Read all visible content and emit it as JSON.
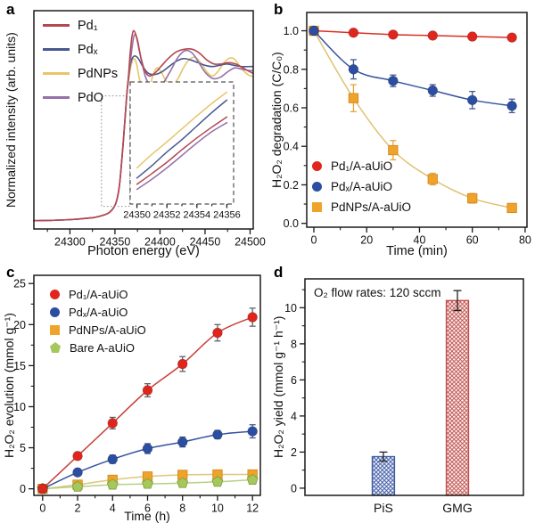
{
  "panels": {
    "a": "a",
    "b": "b",
    "c": "c",
    "d": "d"
  },
  "chart_data": [
    {
      "id": "a",
      "type": "line",
      "xlabel": "Photon energy (eV)",
      "ylabel": "Normalized intensity (arb. units)",
      "xlim": [
        24260,
        24503.5
      ],
      "ylim": [
        -0.03,
        1.61
      ],
      "xticks": [
        24300,
        24350,
        24400,
        24450,
        24500
      ],
      "xtick_labels": [
        "24300",
        "24350",
        "24400",
        "24450",
        "24500"
      ],
      "grid": false,
      "legend_position": "top-left",
      "series": [
        {
          "name": "Pd₁",
          "color": "#b5474f",
          "x": [
            24260,
            24280,
            24300,
            24315,
            24328,
            24338,
            24344,
            24349,
            24352,
            24355,
            24358,
            24361,
            24363,
            24365,
            24367,
            24369,
            24371,
            24374,
            24378,
            24383,
            24388,
            24394,
            24401,
            24409,
            24418,
            24427,
            24436,
            24444,
            24452,
            24460,
            24468,
            24476,
            24484,
            24492,
            24500,
            24503
          ],
          "y": [
            0.032,
            0.035,
            0.04,
            0.048,
            0.058,
            0.075,
            0.095,
            0.135,
            0.185,
            0.3,
            0.52,
            0.78,
            0.97,
            1.12,
            1.3,
            1.42,
            1.46,
            1.41,
            1.28,
            1.16,
            1.12,
            1.14,
            1.19,
            1.25,
            1.3,
            1.32,
            1.32,
            1.29,
            1.24,
            1.21,
            1.21,
            1.22,
            1.21,
            1.18,
            1.15,
            1.14
          ]
        },
        {
          "name": "Pdₓ",
          "color": "#46598f",
          "x": [
            24260,
            24280,
            24300,
            24315,
            24328,
            24338,
            24344,
            24349,
            24352,
            24355,
            24358,
            24361,
            24363,
            24365,
            24367,
            24369,
            24372,
            24376,
            24381,
            24387,
            24394,
            24402,
            24410,
            24418,
            24426,
            24434,
            24442,
            24450,
            24458,
            24466,
            24474,
            24482,
            24490,
            24500,
            24503
          ],
          "y": [
            0.032,
            0.035,
            0.04,
            0.048,
            0.058,
            0.075,
            0.095,
            0.135,
            0.185,
            0.3,
            0.52,
            0.78,
            0.97,
            1.1,
            1.2,
            1.25,
            1.27,
            1.25,
            1.19,
            1.14,
            1.13,
            1.15,
            1.19,
            1.23,
            1.25,
            1.24,
            1.22,
            1.2,
            1.19,
            1.2,
            1.21,
            1.2,
            1.19,
            1.19,
            1.19
          ]
        },
        {
          "name": "PdNPs",
          "color": "#e7c568",
          "x": [
            24260,
            24280,
            24300,
            24315,
            24328,
            24338,
            24344,
            24349,
            24352,
            24355,
            24358,
            24361,
            24363,
            24365,
            24368,
            24371,
            24374,
            24377,
            24381,
            24385,
            24389,
            24393,
            24397,
            24402,
            24408,
            24414,
            24420,
            24426,
            24432,
            24439,
            24446,
            24452,
            24458,
            24464,
            24470,
            24476,
            24482,
            24488,
            24494,
            24500,
            24503
          ],
          "y": [
            0.032,
            0.035,
            0.04,
            0.048,
            0.058,
            0.075,
            0.095,
            0.135,
            0.185,
            0.3,
            0.52,
            0.78,
            0.97,
            1.08,
            1.2,
            1.25,
            1.21,
            1.1,
            1.01,
            0.99,
            1.05,
            1.14,
            1.18,
            1.14,
            1.07,
            1.05,
            1.1,
            1.18,
            1.24,
            1.26,
            1.21,
            1.15,
            1.12,
            1.15,
            1.21,
            1.25,
            1.25,
            1.2,
            1.15,
            1.12,
            1.12
          ]
        },
        {
          "name": "PdO",
          "color": "#9670a8",
          "x": [
            24260,
            24280,
            24300,
            24315,
            24328,
            24338,
            24344,
            24349,
            24352,
            24355,
            24358,
            24361,
            24363,
            24365,
            24368,
            24370,
            24372,
            24375,
            24379,
            24384,
            24390,
            24396,
            24403,
            24411,
            24420,
            24428,
            24436,
            24444,
            24451,
            24459,
            24467,
            24475,
            24483,
            24491,
            24500,
            24503
          ],
          "y": [
            0.032,
            0.035,
            0.04,
            0.048,
            0.058,
            0.075,
            0.095,
            0.135,
            0.185,
            0.3,
            0.52,
            0.78,
            0.97,
            1.1,
            1.28,
            1.38,
            1.43,
            1.39,
            1.25,
            1.11,
            1.04,
            1.02,
            1.06,
            1.15,
            1.26,
            1.31,
            1.29,
            1.21,
            1.14,
            1.1,
            1.11,
            1.15,
            1.18,
            1.17,
            1.16,
            1.16
          ]
        }
      ],
      "source_box": {
        "x0": 24335,
        "x1": 24366.5,
        "y0": 0.14,
        "y1": 0.97
      },
      "inset": {
        "xlim": [
          24349.55,
          24356.45
        ],
        "ylim": [
          -0.02,
          1.06
        ],
        "xticks": [
          24350,
          24352,
          24354,
          24356
        ],
        "xtick_labels": [
          "24350",
          "24352",
          "24354",
          "24356"
        ],
        "series": [
          {
            "name": "Pd₁",
            "color": "#b5474f",
            "x": [
              24350,
              24351,
              24352,
              24353,
              24354,
              24355,
              24356
            ],
            "y": [
              0.155,
              0.25,
              0.35,
              0.46,
              0.565,
              0.66,
              0.75
            ]
          },
          {
            "name": "Pdₓ",
            "color": "#46598f",
            "x": [
              24350,
              24351,
              24352,
              24353,
              24354,
              24355,
              24356
            ],
            "y": [
              0.21,
              0.32,
              0.44,
              0.55,
              0.67,
              0.79,
              0.9
            ]
          },
          {
            "name": "PdNPs",
            "color": "#e7c568",
            "x": [
              24350,
              24351,
              24352,
              24353,
              24354,
              24355,
              24356
            ],
            "y": [
              0.3,
              0.42,
              0.53,
              0.645,
              0.76,
              0.87,
              0.97
            ]
          },
          {
            "name": "PdO",
            "color": "#9670a8",
            "x": [
              24350,
              24351,
              24352,
              24353,
              24354,
              24355,
              24356
            ],
            "y": [
              0.11,
              0.2,
              0.3,
              0.41,
              0.52,
              0.62,
              0.7
            ]
          }
        ]
      }
    },
    {
      "id": "b",
      "type": "scatter-line",
      "xlabel": "Time (min)",
      "ylabel": "H₂O₂ degradation (C/C₀)",
      "xlim": [
        -2.7,
        80.7
      ],
      "ylim": [
        -0.02,
        1.095
      ],
      "xticks": [
        0,
        20,
        40,
        60,
        80
      ],
      "xtick_labels": [
        "0",
        "20",
        "40",
        "60",
        "80"
      ],
      "yticks": [
        0,
        0.2,
        0.4,
        0.6,
        0.8,
        1.0
      ],
      "ytick_labels": [
        "0.0",
        "0.2",
        "0.4",
        "0.6",
        "0.8",
        "1.0"
      ],
      "grid": false,
      "legend_position": "bottom-left",
      "series": [
        {
          "name": "Pd₁/A-aUiO",
          "marker": "circle",
          "color": "#e0261c",
          "line_color": "#d92f24",
          "error_color": "#c0392f",
          "x": [
            0,
            15,
            30,
            45,
            60,
            75
          ],
          "y": [
            1.0,
            0.99,
            0.98,
            0.975,
            0.97,
            0.965
          ],
          "yerr": [
            0.006,
            0.01,
            0.01,
            0.01,
            0.012,
            0.012
          ]
        },
        {
          "name": "Pdₓ/A-aUiO",
          "marker": "circle",
          "color": "#2b4ea3",
          "line_color": "#35539f",
          "error_color": "#46598f",
          "x": [
            0,
            15,
            30,
            45,
            60,
            75
          ],
          "y": [
            1.0,
            0.8,
            0.74,
            0.69,
            0.64,
            0.61
          ],
          "yerr": [
            0.006,
            0.05,
            0.03,
            0.03,
            0.045,
            0.035
          ]
        },
        {
          "name": "PdNPs/A-aUiO",
          "marker": "square",
          "color": "#f0a32b",
          "edge": "#d4881c",
          "line_color": "#dfc272",
          "error_color": "#e8a33c",
          "x": [
            0,
            15,
            30,
            45,
            60,
            75
          ],
          "y": [
            1.0,
            0.65,
            0.38,
            0.23,
            0.13,
            0.08
          ],
          "yerr": [
            0.006,
            0.07,
            0.05,
            0.03,
            0.025,
            0.012
          ]
        }
      ]
    },
    {
      "id": "c",
      "type": "scatter-line",
      "xlabel": "Time (h)",
      "ylabel": "H₂O₂ evolution (mmol g⁻¹)",
      "xlim": [
        -0.5,
        12.45
      ],
      "ylim": [
        -0.8,
        26
      ],
      "xticks": [
        0,
        2,
        4,
        6,
        8,
        10,
        12
      ],
      "xtick_labels": [
        "0",
        "2",
        "4",
        "6",
        "8",
        "10",
        "12"
      ],
      "yticks": [
        0,
        5,
        10,
        15,
        20,
        25
      ],
      "ytick_labels": [
        "0",
        "5",
        "10",
        "15",
        "20",
        "25"
      ],
      "grid": false,
      "legend_position": "top-left",
      "series": [
        {
          "name": "Pd₁/A-aUiO",
          "marker": "circle",
          "color": "#e0261c",
          "line_color": "#c8413a",
          "error_color": "#5f6368",
          "x": [
            0,
            2,
            4,
            6,
            8,
            10,
            12
          ],
          "y": [
            0,
            4.0,
            8.0,
            12.0,
            15.2,
            19.0,
            20.9
          ],
          "yerr": [
            0,
            0.4,
            0.7,
            0.8,
            0.9,
            1.0,
            1.1
          ]
        },
        {
          "name": "Pdₓ/A-aUiO",
          "marker": "circle",
          "color": "#2b4ea3",
          "line_color": "#35539f",
          "error_color": "#46598f",
          "x": [
            0,
            2,
            4,
            6,
            8,
            10,
            12
          ],
          "y": [
            0,
            2.0,
            3.6,
            4.9,
            5.7,
            6.6,
            7.0
          ],
          "yerr": [
            0,
            0.3,
            0.5,
            0.6,
            0.6,
            0.5,
            0.8
          ]
        },
        {
          "name": "PdNPs/A-aUiO",
          "marker": "square",
          "color": "#f0a32b",
          "edge": "#d4881c",
          "line_color": "#ddc778",
          "error_color": "#e8a33c",
          "x": [
            0,
            2,
            4,
            6,
            8,
            10,
            12
          ],
          "y": [
            0,
            0.5,
            1.1,
            1.5,
            1.7,
            1.75,
            1.75
          ],
          "yerr": [
            0,
            0.1,
            0.15,
            0.15,
            0.15,
            0.15,
            0.15
          ]
        },
        {
          "name": "Bare A-aUiO",
          "marker": "pentagon",
          "color": "#a6c75c",
          "edge": "#7da33e",
          "line_color": "#b9cf86",
          "error_color": "#8fb34c",
          "x": [
            0,
            2,
            4,
            6,
            8,
            10,
            12
          ],
          "y": [
            0,
            0.25,
            0.5,
            0.6,
            0.7,
            0.85,
            1.1
          ],
          "yerr": [
            0,
            0.08,
            0.1,
            0.1,
            0.1,
            0.1,
            0.15
          ]
        }
      ]
    },
    {
      "id": "d",
      "type": "bar",
      "xlabel": "",
      "ylabel": "H₂O₂ yield (mmol g⁻¹ h⁻¹)",
      "categories": [
        "PiS",
        "GMG"
      ],
      "values": [
        1.75,
        10.4
      ],
      "errors": [
        0.25,
        0.55
      ],
      "colors": [
        "#3d5aa5",
        "#c0504c"
      ],
      "hatch": "crosshatch",
      "ylim": [
        -0.4,
        11.6
      ],
      "yticks": [
        0,
        2,
        4,
        6,
        8,
        10
      ],
      "ytick_labels": [
        "0",
        "2",
        "4",
        "6",
        "8",
        "10"
      ],
      "grid": false,
      "annotation": "O₂ flow rates: 120 sccm"
    }
  ]
}
